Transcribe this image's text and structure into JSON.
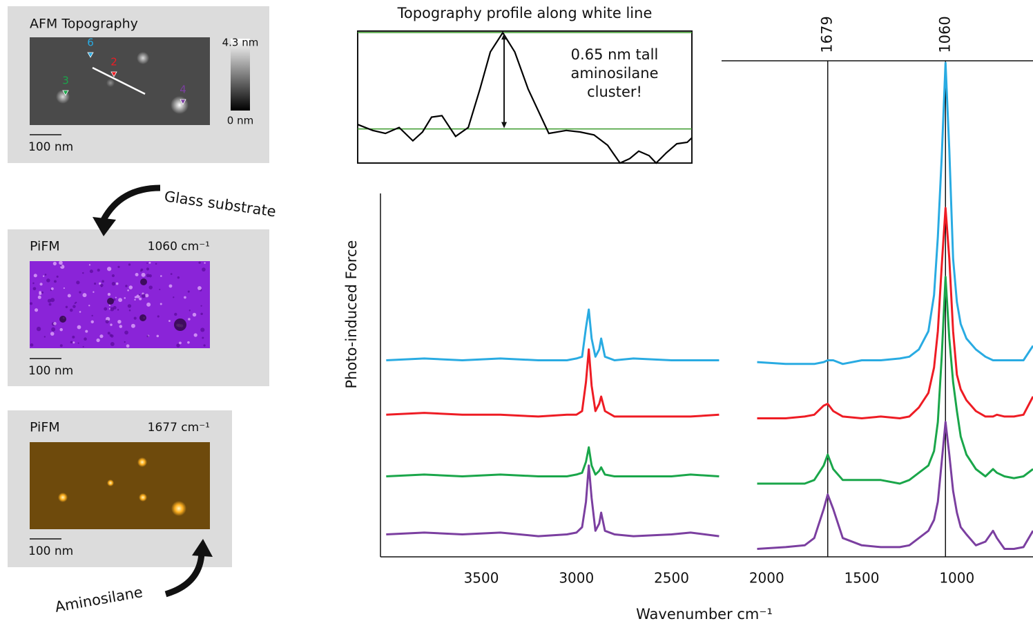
{
  "panels": [
    {
      "title": "AFM Topography",
      "colorbar": [
        "4.3 nm",
        "0 nm"
      ],
      "scale_bar": "100 nm",
      "markers": [
        {
          "label": "6",
          "color": "#29abe2"
        },
        {
          "label": "2",
          "color": "#ee1c24"
        },
        {
          "label": "3",
          "color": "#1aa64a"
        },
        {
          "label": "4",
          "color": "#7b3fa0"
        }
      ]
    },
    {
      "title": "PiFM",
      "wavenumber": "1060 cm⁻¹",
      "scale_bar": "100 nm"
    },
    {
      "title": "PiFM",
      "wavenumber": "1677 cm⁻¹",
      "scale_bar": "100 nm"
    }
  ],
  "arrows": [
    "Glass substrate",
    "Aminosilane"
  ],
  "chart_data": [
    {
      "type": "line",
      "title": "Topography profile along white line",
      "annotation": [
        "0.65 nm tall",
        "aminosilane",
        "cluster!"
      ],
      "x": [
        0,
        4.5,
        8.3,
        12.4,
        16.5,
        19.4,
        22.1,
        25.2,
        29.3,
        33.1,
        36.6,
        39.7,
        43.4,
        47,
        51,
        57.2,
        62.4,
        66.5,
        70.7,
        74.8,
        78.5,
        81.4,
        84.1,
        87.2,
        89.3,
        92.4,
        95.5,
        98.6,
        100
      ],
      "values": [
        0.26,
        0.22,
        0.2,
        0.24,
        0.15,
        0.21,
        0.31,
        0.32,
        0.18,
        0.24,
        0.5,
        0.75,
        0.88,
        0.75,
        0.5,
        0.2,
        0.22,
        0.21,
        0.19,
        0.12,
        0,
        0.03,
        0.08,
        0.05,
        0,
        0.07,
        0.13,
        0.14,
        0.17
      ],
      "color": "#000000",
      "hlines": [
        0.23,
        0.88
      ],
      "hline_color": "#3a9a2a",
      "xlim": [
        0,
        100
      ],
      "ylim": [
        0,
        0.9
      ]
    },
    {
      "type": "line",
      "x_label": "Wavenumber cm⁻¹",
      "y_label": "Photo-induced Force",
      "x": [
        4000,
        3800,
        3600,
        3400,
        3200,
        3050,
        3000,
        2970,
        2950,
        2935,
        2920,
        2900,
        2880,
        2870,
        2850,
        2800,
        2700,
        2500,
        2400,
        2250,
        2150,
        2050,
        1900,
        1800,
        1750,
        1700,
        1679,
        1650,
        1600,
        1500,
        1400,
        1300,
        1250,
        1200,
        1150,
        1120,
        1100,
        1080,
        1060,
        1040,
        1020,
        1000,
        980,
        950,
        900,
        850,
        810,
        790,
        750,
        700,
        650,
        600
      ],
      "series": [
        {
          "color": "#29abe2",
          "values": [
            54,
            54.5,
            54,
            54.5,
            54,
            54,
            54.5,
            55,
            63,
            68,
            60,
            55,
            57,
            60,
            55,
            54,
            54.5,
            54,
            54,
            54,
            null,
            53.5,
            53,
            53,
            53,
            53.5,
            54,
            54,
            53,
            54,
            54,
            54.5,
            55,
            57,
            62,
            72,
            88,
            110,
            136,
            112,
            82,
            70,
            64,
            60,
            57,
            55,
            54,
            54,
            54,
            54,
            54,
            58
          ]
        },
        {
          "color": "#ee1c24",
          "values": [
            39,
            39.5,
            39,
            39,
            38.5,
            39,
            39,
            40,
            48,
            57,
            47,
            40,
            42,
            44,
            40,
            38.5,
            38.5,
            38.5,
            38.5,
            39,
            null,
            38,
            38,
            38.5,
            39,
            41.5,
            42,
            40,
            38.5,
            38,
            38.5,
            38,
            38.5,
            41,
            45,
            52,
            62,
            80,
            96,
            82,
            62,
            50,
            46,
            43,
            40,
            38.5,
            38.5,
            39,
            38.5,
            38.5,
            39,
            44
          ]
        },
        {
          "color": "#1aa64a",
          "values": [
            22,
            22.5,
            22,
            22.5,
            22,
            22,
            22.5,
            23,
            26,
            30,
            25,
            22.5,
            23.5,
            24.5,
            22.5,
            22,
            22,
            22,
            22.5,
            22,
            null,
            20,
            20,
            20,
            21,
            25,
            28,
            24,
            21,
            21,
            21,
            20,
            21,
            23,
            25,
            29,
            37,
            55,
            77,
            60,
            48,
            40,
            33,
            28,
            24,
            22,
            24,
            23,
            22,
            21.5,
            22,
            24
          ]
        },
        {
          "color": "#7b3fa0",
          "values": [
            6,
            6.5,
            6,
            6.5,
            5.5,
            6,
            6.5,
            8,
            15,
            25,
            16,
            7,
            9,
            12,
            7,
            6,
            5.5,
            6,
            6.5,
            5.5,
            null,
            2,
            2.5,
            3,
            5,
            13,
            17,
            13,
            5,
            3,
            2.5,
            2.5,
            3,
            5,
            7,
            10,
            15,
            26,
            37,
            28,
            18,
            12,
            8,
            6,
            3,
            4,
            7,
            5,
            2,
            2,
            2.5,
            7
          ]
        }
      ],
      "vlines": [
        1679,
        1060
      ],
      "xlim": [
        4030,
        600
      ],
      "ylim": [
        0,
        140
      ],
      "xticks": [
        3500,
        3000,
        2500,
        2000,
        1500,
        1000
      ],
      "grid": false
    }
  ]
}
